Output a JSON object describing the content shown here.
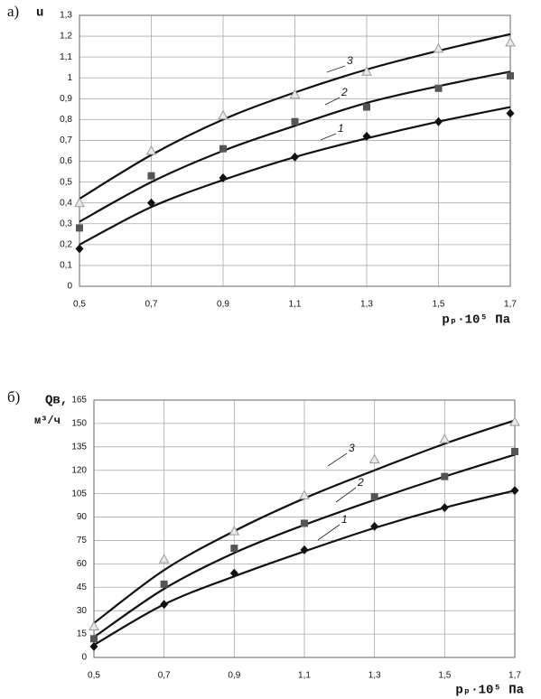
{
  "chart_data": [
    {
      "type": "line",
      "panel": "а)",
      "ylabel": "u",
      "xlabel": "pₚ·10⁵ Па",
      "x": [
        0.5,
        0.7,
        0.9,
        1.1,
        1.3,
        1.5,
        1.7
      ],
      "xlim": [
        0.5,
        1.7
      ],
      "xticks": [
        {
          "value": 0.5,
          "label": "0,5"
        },
        {
          "value": 0.7,
          "label": "0,7"
        },
        {
          "value": 0.9,
          "label": "0,9"
        },
        {
          "value": 1.1,
          "label": "1,1"
        },
        {
          "value": 1.3,
          "label": "1,3"
        },
        {
          "value": 1.5,
          "label": "1,5"
        },
        {
          "value": 1.7,
          "label": "1,7"
        }
      ],
      "ylim": [
        0,
        1.3
      ],
      "yticks": [
        0,
        {
          "value": 0.1,
          "label": "0,1"
        },
        {
          "value": 0.2,
          "label": "0,2"
        },
        {
          "value": 0.3,
          "label": "0,3"
        },
        {
          "value": 0.4,
          "label": "0,4"
        },
        {
          "value": 0.5,
          "label": "0,5"
        },
        {
          "value": 0.6,
          "label": "0,6"
        },
        {
          "value": 0.7,
          "label": "0,7"
        },
        {
          "value": 0.8,
          "label": "0,8"
        },
        {
          "value": 0.9,
          "label": "0,9"
        },
        1,
        {
          "value": 1.1,
          "label": "1,1"
        },
        {
          "value": 1.2,
          "label": "1,2"
        },
        {
          "value": 1.3,
          "label": "1,3"
        }
      ],
      "grid": true,
      "series": [
        {
          "name": "1",
          "color": "#111111",
          "marker": "diamond",
          "values": [
            0.18,
            0.4,
            0.52,
            0.62,
            0.72,
            0.79,
            0.83
          ],
          "fit": [
            0.2,
            0.38,
            0.51,
            0.62,
            0.71,
            0.79,
            0.86
          ]
        },
        {
          "name": "2",
          "color": "#555555",
          "marker": "square",
          "values": [
            0.28,
            0.53,
            0.66,
            0.79,
            0.86,
            0.95,
            1.01
          ],
          "fit": [
            0.31,
            0.5,
            0.65,
            0.77,
            0.88,
            0.96,
            1.03
          ]
        },
        {
          "name": "3",
          "color": "#999999",
          "marker": "triangle",
          "values": [
            0.4,
            0.65,
            0.82,
            0.92,
            1.03,
            1.14,
            1.17
          ],
          "fit": [
            0.42,
            0.63,
            0.8,
            0.93,
            1.04,
            1.13,
            1.21
          ]
        }
      ]
    },
    {
      "type": "line",
      "panel": "б)",
      "ylabel": "Qв,",
      "ylabel_unit": "м³/ч",
      "xlabel": "pₚ·10⁵ Па",
      "x": [
        0.5,
        0.7,
        0.9,
        1.1,
        1.3,
        1.5,
        1.7
      ],
      "xlim": [
        0.5,
        1.7
      ],
      "xticks": [
        {
          "value": 0.5,
          "label": "0,5"
        },
        {
          "value": 0.7,
          "label": "0,7"
        },
        {
          "value": 0.9,
          "label": "0,9"
        },
        {
          "value": 1.1,
          "label": "1,1"
        },
        {
          "value": 1.3,
          "label": "1,3"
        },
        {
          "value": 1.5,
          "label": "1,5"
        },
        {
          "value": 1.7,
          "label": "1,7"
        }
      ],
      "ylim": [
        0,
        165
      ],
      "yticks": [
        0,
        15,
        30,
        45,
        60,
        75,
        90,
        105,
        120,
        135,
        150,
        165
      ],
      "grid": true,
      "series": [
        {
          "name": "1",
          "color": "#111111",
          "marker": "diamond",
          "values": [
            7,
            34,
            54,
            69,
            84,
            96,
            107
          ],
          "fit": [
            8,
            34,
            52,
            68,
            83,
            96,
            107
          ]
        },
        {
          "name": "2",
          "color": "#555555",
          "marker": "square",
          "values": [
            12,
            47,
            70,
            86,
            103,
            116,
            132
          ],
          "fit": [
            13,
            44,
            67,
            85,
            101,
            116,
            130
          ]
        },
        {
          "name": "3",
          "color": "#999999",
          "marker": "triangle",
          "values": [
            20,
            63,
            81,
            104,
            127,
            140,
            151
          ],
          "fit": [
            22,
            56,
            81,
            102,
            120,
            137,
            152
          ]
        }
      ]
    }
  ]
}
